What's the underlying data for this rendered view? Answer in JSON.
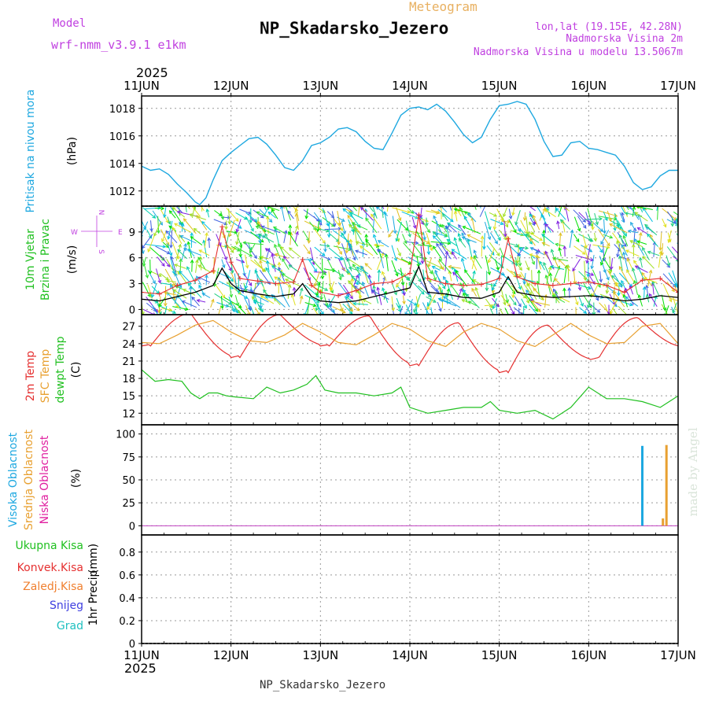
{
  "header": {
    "model_label": "Model",
    "model_name": "wrf-nmm_v3.9.1 e1km",
    "meteogram_label": "Meteogram",
    "station": "NP_Skadarsko_Jezero",
    "lonlat": "lon,lat (19.15E, 42.28N)",
    "elevation": "Nadmorska Visina 2m",
    "model_elevation": "Nadmorska Visina u modelu 13.5067m",
    "year_top": "2025",
    "year_bottom": "2025",
    "footer_station": "NP_Skadarsko_Jezero",
    "watermark": "made by Angel"
  },
  "colors": {
    "pressure": "#1ea8e0",
    "wind_speed": "#000000",
    "wind_gust": "#e53030",
    "temp2m": "#e53030",
    "sfc_temp": "#e8a030",
    "dewpt": "#20c020",
    "high_cloud": "#1ea8e0",
    "mid_cloud": "#e8a030",
    "low_cloud": "#e020a0",
    "total_precip": "#20c020",
    "conv_precip": "#e53030",
    "frozen_precip": "#f08030",
    "snow": "#4040e0",
    "hail": "#20c0c0",
    "compass": "#c040e0"
  },
  "chart_data": {
    "type": "line",
    "x_ticks": [
      "11JUN",
      "12JUN",
      "13JUN",
      "14JUN",
      "15JUN",
      "16JUN",
      "17JUN"
    ],
    "x_range_days": [
      0,
      6
    ],
    "panels": [
      {
        "id": "pressure",
        "ylabel": "Pritisak na nivou mora",
        "unit": "(hPa)",
        "yticks": [
          1012,
          1014,
          1016,
          1018
        ],
        "ylim": [
          1010.9,
          1018.9
        ],
        "series": [
          {
            "name": "Pritisak na nivou mora",
            "color_key": "pressure",
            "x": [
              0,
              0.1,
              0.2,
              0.3,
              0.4,
              0.5,
              0.6,
              0.65,
              0.72,
              0.8,
              0.9,
              1.0,
              1.1,
              1.2,
              1.3,
              1.4,
              1.5,
              1.6,
              1.7,
              1.8,
              1.9,
              2.0,
              2.1,
              2.2,
              2.3,
              2.4,
              2.5,
              2.6,
              2.7,
              2.8,
              2.9,
              3.0,
              3.1,
              3.2,
              3.3,
              3.4,
              3.5,
              3.6,
              3.7,
              3.8,
              3.9,
              4.0,
              4.1,
              4.2,
              4.3,
              4.4,
              4.5,
              4.6,
              4.7,
              4.8,
              4.9,
              5.0,
              5.1,
              5.2,
              5.3,
              5.4,
              5.5,
              5.6,
              5.7,
              5.8,
              5.9,
              6.0
            ],
            "y": [
              1013.8,
              1013.5,
              1013.6,
              1013.2,
              1012.5,
              1011.9,
              1011.2,
              1011.0,
              1011.5,
              1012.8,
              1014.2,
              1014.8,
              1015.3,
              1015.8,
              1015.9,
              1015.4,
              1014.6,
              1013.7,
              1013.5,
              1014.2,
              1015.3,
              1015.5,
              1015.9,
              1016.5,
              1016.6,
              1016.3,
              1015.6,
              1015.1,
              1015.0,
              1016.2,
              1017.5,
              1018.0,
              1018.1,
              1017.9,
              1018.3,
              1017.8,
              1017.0,
              1016.1,
              1015.5,
              1015.9,
              1017.2,
              1018.2,
              1018.3,
              1018.5,
              1018.3,
              1017.2,
              1015.6,
              1014.5,
              1014.6,
              1015.5,
              1015.6,
              1015.1,
              1015.0,
              1014.8,
              1014.6,
              1013.8,
              1012.6,
              1012.1,
              1012.3,
              1013.1,
              1013.5,
              1013.5
            ]
          }
        ]
      },
      {
        "id": "wind",
        "ylabel": "10m Vjetar Brzina i Pravac",
        "unit": "(m/s)",
        "yticks": [
          0,
          3,
          6,
          9
        ],
        "ylim": [
          -0.6,
          12.0
        ],
        "compass": {
          "n": "N",
          "s": "S",
          "e": "E",
          "w": "W"
        },
        "series": [
          {
            "name": "speed",
            "color_key": "wind_speed",
            "x": [
              0,
              0.2,
              0.4,
              0.6,
              0.8,
              0.9,
              1.0,
              1.1,
              1.3,
              1.5,
              1.7,
              1.8,
              1.9,
              2.0,
              2.2,
              2.4,
              2.6,
              2.8,
              3.0,
              3.1,
              3.2,
              3.4,
              3.6,
              3.8,
              4.0,
              4.1,
              4.2,
              4.4,
              4.6,
              4.8,
              5.0,
              5.2,
              5.4,
              5.6,
              5.8,
              6.0
            ],
            "y": [
              1.2,
              1.0,
              1.5,
              2.0,
              2.8,
              4.8,
              3.0,
              2.2,
              1.8,
              1.5,
              1.8,
              3.0,
              1.5,
              1.0,
              0.8,
              1.0,
              1.5,
              2.0,
              2.5,
              5.0,
              2.0,
              1.8,
              1.4,
              1.3,
              2.0,
              3.8,
              2.0,
              1.6,
              1.4,
              1.5,
              1.6,
              1.4,
              1.0,
              1.2,
              1.6,
              1.4
            ]
          },
          {
            "name": "gust",
            "color_key": "wind_gust",
            "x": [
              0,
              0.2,
              0.4,
              0.6,
              0.8,
              0.9,
              1.0,
              1.1,
              1.3,
              1.5,
              1.7,
              1.8,
              1.9,
              2.0,
              2.2,
              2.4,
              2.6,
              2.8,
              3.0,
              3.1,
              3.2,
              3.4,
              3.6,
              3.8,
              4.0,
              4.1,
              4.2,
              4.4,
              4.6,
              4.8,
              5.0,
              5.2,
              5.4,
              5.6,
              5.8,
              6.0
            ],
            "y": [
              2.0,
              1.8,
              2.8,
              3.4,
              4.5,
              9.6,
              5.5,
              3.6,
              3.3,
              3.0,
              3.2,
              5.8,
              2.8,
              2.0,
              1.6,
              2.2,
              3.0,
              3.2,
              4.2,
              11.0,
              3.6,
              3.0,
              2.8,
              2.9,
              3.6,
              8.2,
              3.8,
              3.0,
              2.8,
              3.0,
              3.2,
              2.8,
              2.0,
              3.4,
              3.6,
              2.0
            ]
          }
        ]
      },
      {
        "id": "temperature",
        "ylabel": "2m Temp / SFC Temp / dewpt Temp",
        "unit": "(C)",
        "yticks": [
          12,
          15,
          18,
          21,
          24,
          27
        ],
        "ylim": [
          10.0,
          29.0
        ],
        "labels": [
          "2m Temp",
          "SFC Temp",
          "dewpt Temp"
        ],
        "series": [
          {
            "name": "2m Temp",
            "color_key": "temp2m",
            "x": [
              0,
              0.15,
              0.3,
              0.45,
              0.5,
              0.5001
            ],
            "y": [
              24,
              23.6,
              24,
              25.3,
              26.3,
              26.3
            ]
          },
          {
            "name": "SFC Temp",
            "color_key": "sfc_temp",
            "x": [
              0,
              0.2,
              0.4,
              0.6,
              0.8,
              1.0,
              1.2,
              1.4,
              1.6,
              1.8,
              2.0,
              2.2,
              2.4,
              2.6,
              2.8,
              3.0,
              3.2,
              3.4,
              3.6,
              3.8,
              4.0,
              4.2,
              4.4,
              4.6,
              4.8,
              5.0,
              5.2,
              5.4,
              5.6,
              5.8,
              6.0
            ],
            "y": [
              24.2,
              24.0,
              25.5,
              27.2,
              28.0,
              26.0,
              24.5,
              24.2,
              25.5,
              27.5,
              26.0,
              24.2,
              23.8,
              25.5,
              27.5,
              26.5,
              24.5,
              23.5,
              26.0,
              27.5,
              26.5,
              24.5,
              23.5,
              25.5,
              27.5,
              25.5,
              24.0,
              24.2,
              27.0,
              27.5,
              24.0
            ]
          },
          {
            "name": "dewpt Temp",
            "color_key": "dewpt",
            "x": [
              0,
              0.15,
              0.3,
              0.45,
              0.55,
              0.65,
              0.75,
              0.85,
              0.95,
              1.05,
              1.25,
              1.4,
              1.55,
              1.7,
              1.85,
              1.95,
              2.05,
              2.2,
              2.4,
              2.6,
              2.8,
              2.9,
              3.0,
              3.2,
              3.4,
              3.6,
              3.8,
              3.9,
              4.0,
              4.2,
              4.4,
              4.6,
              4.8,
              5.0,
              5.2,
              5.4,
              5.6,
              5.8,
              6.0
            ],
            "y": [
              19.5,
              17.5,
              17.8,
              17.5,
              15.5,
              14.5,
              15.5,
              15.5,
              15.0,
              14.8,
              14.5,
              16.5,
              15.5,
              16.0,
              17.0,
              18.5,
              16.0,
              15.5,
              15.5,
              15.0,
              15.5,
              16.5,
              13.0,
              12.0,
              12.5,
              13.0,
              13.0,
              14.0,
              12.5,
              12.0,
              12.5,
              11.0,
              13.0,
              16.5,
              14.5,
              14.5,
              14.0,
              13.0,
              15.0
            ]
          }
        ]
      },
      {
        "id": "cloud",
        "ylabel": "Visoka Oblacnost / Srednja Oblacnost / Niska Oblacnost",
        "unit": "(%)",
        "yticks": [
          0,
          25,
          50,
          75,
          100
        ],
        "ylim": [
          -10,
          110
        ],
        "labels": [
          "Visoka Oblacnost",
          "Srednja Oblacnost",
          "Niska Oblacnost"
        ],
        "bars": [
          {
            "name": "Visoka Oblacnost",
            "color_key": "high_cloud",
            "x": 5.6,
            "value": 87
          },
          {
            "name": "Srednja Oblacnost",
            "color_key": "mid_cloud",
            "x": 5.83,
            "value": 8
          },
          {
            "name": "Srednja Oblacnost",
            "color_key": "mid_cloud",
            "x": 5.87,
            "value": 88
          }
        ]
      },
      {
        "id": "precip",
        "ylabel": "1hr Precip",
        "unit": "(mm)",
        "yticks": [
          0,
          0.2,
          0.4,
          0.6,
          0.8
        ],
        "ylim": [
          0,
          0.95
        ],
        "labels": [
          "Ukupna Kisa",
          "Konvek.Kisa",
          "Zaledj.Kisa",
          "Snijeg",
          "Grad"
        ],
        "series": []
      }
    ]
  }
}
